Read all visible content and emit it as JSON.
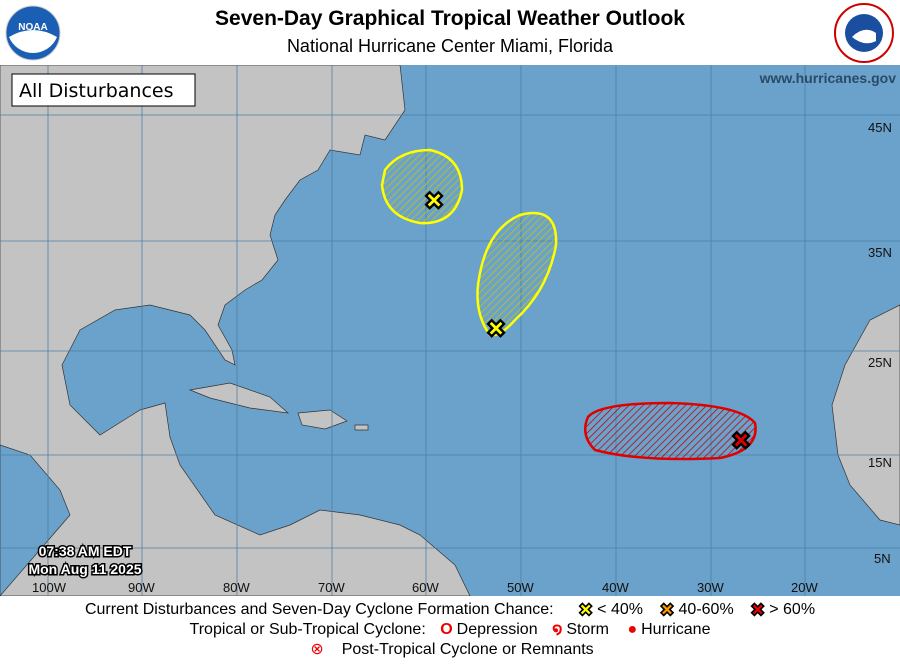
{
  "header": {
    "title": "Seven-Day Graphical Tropical Weather Outlook",
    "subtitle": "National Hurricane Center  Miami, Florida",
    "left_logo": "NOAA",
    "right_logo": "National Weather Service"
  },
  "map": {
    "panel_label": "All Disturbances",
    "website": "www.hurricanes.gov",
    "time": "07:38 AM EDT",
    "date": "Mon Aug 11 2025",
    "lon_labels": [
      "100W",
      "90W",
      "80W",
      "70W",
      "60W",
      "50W",
      "40W",
      "30W",
      "20W"
    ],
    "lat_labels": [
      "45N",
      "35N",
      "25N",
      "15N",
      "5N"
    ],
    "colors": {
      "ocean": "#6aa2cb",
      "land": "#c3c3c3",
      "low": "#ffff00",
      "medium": "#ff9900",
      "high": "#e00000"
    },
    "disturbances": [
      {
        "chance": "low",
        "location": "off Nova Scotia"
      },
      {
        "chance": "low",
        "location": "central Atlantic"
      },
      {
        "chance": "high",
        "location": "east of Lesser Antilles"
      }
    ]
  },
  "legend": {
    "line1": "Current Disturbances and Seven-Day Cyclone Formation Chance:",
    "low": "< 40%",
    "medium": "40-60%",
    "high": "> 60%",
    "line2": "Tropical or Sub-Tropical Cyclone:",
    "depression": "Depression",
    "storm": "Storm",
    "hurricane": "Hurricane",
    "post": "Post-Tropical Cyclone or Remnants"
  }
}
